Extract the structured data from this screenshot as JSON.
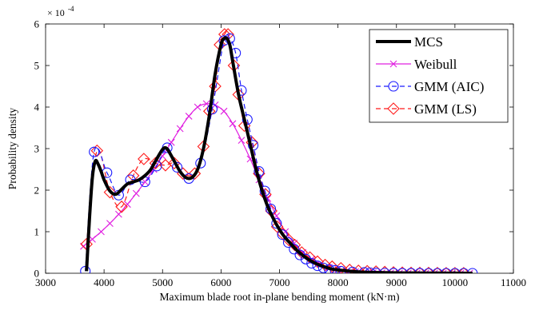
{
  "chart_data": {
    "type": "line",
    "xlabel": "Maximum blade root in-plane bending moment (kN·m)",
    "ylabel": "Probability density",
    "y_exponent_label": "× 10",
    "y_exponent_power": "-4",
    "xlim": [
      3000,
      11000
    ],
    "ylim": [
      0,
      6
    ],
    "x_ticks": [
      3000,
      4000,
      5000,
      6000,
      7000,
      8000,
      9000,
      10000,
      11000
    ],
    "y_ticks": [
      0,
      1,
      2,
      3,
      4,
      5,
      6
    ],
    "x_tick_labels": [
      "3000",
      "4000",
      "5000",
      "6000",
      "7000",
      "8000",
      "9000",
      "10000",
      "11000"
    ],
    "y_tick_labels": [
      "0",
      "1",
      "2",
      "3",
      "4",
      "5",
      "6"
    ],
    "grid": false,
    "legend_position": "top-right",
    "series": [
      {
        "name": "MCS",
        "color": "#000000",
        "marker": "none",
        "style": "solid",
        "x": [
          3700,
          3750,
          3800,
          3850,
          3900,
          3950,
          4000,
          4100,
          4200,
          4300,
          4400,
          4500,
          4600,
          4700,
          4800,
          4900,
          5000,
          5050,
          5100,
          5200,
          5300,
          5400,
          5500,
          5600,
          5700,
          5800,
          5900,
          6000,
          6050,
          6100,
          6150,
          6200,
          6300,
          6400,
          6500,
          6600,
          6700,
          6800,
          6900,
          7000,
          7100,
          7200,
          7300,
          7400,
          7500,
          7600,
          7700,
          7800,
          7900,
          8000,
          8200,
          8400,
          8600,
          8800,
          9000,
          9500,
          10000,
          10300
        ],
        "y": [
          0.05,
          1.3,
          2.3,
          2.7,
          2.62,
          2.45,
          2.25,
          1.98,
          1.9,
          2.02,
          2.15,
          2.2,
          2.25,
          2.35,
          2.5,
          2.75,
          2.98,
          3.02,
          2.95,
          2.7,
          2.45,
          2.3,
          2.3,
          2.5,
          3.0,
          3.8,
          4.8,
          5.5,
          5.65,
          5.65,
          5.5,
          5.1,
          4.3,
          3.7,
          3.1,
          2.5,
          2.0,
          1.6,
          1.3,
          1.05,
          0.85,
          0.7,
          0.55,
          0.43,
          0.33,
          0.25,
          0.19,
          0.14,
          0.1,
          0.08,
          0.05,
          0.03,
          0.02,
          0.015,
          0.01,
          0.005,
          0.002,
          0.001
        ]
      },
      {
        "name": "Weibull",
        "color": "#e020e0",
        "marker": "x",
        "style": "solid",
        "x": [
          3650,
          3800,
          3950,
          4100,
          4250,
          4400,
          4550,
          4700,
          4850,
          5000,
          5150,
          5300,
          5450,
          5600,
          5750,
          5900,
          6050,
          6200,
          6350,
          6500,
          6650,
          6800,
          6950,
          7100,
          7250,
          7400,
          7550,
          7700,
          7850,
          8000,
          8150,
          8300,
          8450,
          8600,
          8750,
          8900,
          9050,
          9200,
          9350,
          9500,
          9650,
          9800,
          9950,
          10100,
          10250
        ],
        "y": [
          0.65,
          0.82,
          1.0,
          1.2,
          1.42,
          1.66,
          1.92,
          2.2,
          2.5,
          2.82,
          3.15,
          3.48,
          3.78,
          4.0,
          4.08,
          4.05,
          3.9,
          3.6,
          3.2,
          2.75,
          2.25,
          1.8,
          1.38,
          1.0,
          0.72,
          0.5,
          0.34,
          0.22,
          0.14,
          0.09,
          0.055,
          0.035,
          0.02,
          0.013,
          0.008,
          0.005,
          0.003,
          0.002,
          0.001,
          0.001,
          0.0,
          0.0,
          0.0,
          0.0,
          0.0
        ]
      },
      {
        "name": "GMM (AIC)",
        "color": "#1a1aff",
        "marker": "circle",
        "style": "dashed",
        "x": [
          3680,
          3830,
          4050,
          4250,
          4450,
          4700,
          4900,
          5080,
          5250,
          5450,
          5650,
          5850,
          6050,
          6150,
          6250,
          6350,
          6450,
          6550,
          6650,
          6750,
          6850,
          6950,
          7050,
          7150,
          7250,
          7350,
          7450,
          7550,
          7650,
          7750,
          7850,
          7950,
          8050,
          8250,
          8450,
          8550,
          8650,
          8800,
          8950,
          9100,
          9250,
          9400,
          9550,
          9700,
          9850,
          10000,
          10150,
          10300
        ],
        "y": [
          0.05,
          2.92,
          2.42,
          1.88,
          2.25,
          2.2,
          2.58,
          3.02,
          2.55,
          2.28,
          2.65,
          3.95,
          5.6,
          5.65,
          5.3,
          4.4,
          3.7,
          3.08,
          2.45,
          1.98,
          1.55,
          1.2,
          0.93,
          0.74,
          0.58,
          0.44,
          0.34,
          0.24,
          0.18,
          0.13,
          0.09,
          0.07,
          0.05,
          0.03,
          0.02,
          0.012,
          0.008,
          0.005,
          0.003,
          0.002,
          0.001,
          0.001,
          0.0,
          0.0,
          0.0,
          0.0,
          0.0,
          0.0
        ]
      },
      {
        "name": "GMM (LS)",
        "color": "#ff1a1a",
        "marker": "diamond",
        "style": "dashed",
        "x": [
          3700,
          3880,
          4100,
          4300,
          4500,
          4680,
          4880,
          5050,
          5200,
          5350,
          5550,
          5700,
          5800,
          5900,
          5980,
          6060,
          6120,
          6220,
          6300,
          6400,
          6530,
          6650,
          6760,
          6860,
          6960,
          7060,
          7160,
          7260,
          7380,
          7520,
          7650,
          7780,
          7900,
          8050,
          8200,
          8350,
          8500,
          8650,
          8800,
          8950,
          9100,
          9250,
          9400,
          9550,
          9700,
          9850,
          10000,
          10150
        ],
        "y": [
          0.7,
          2.95,
          1.95,
          1.6,
          2.35,
          2.75,
          2.65,
          2.6,
          2.65,
          2.4,
          2.4,
          3.05,
          3.9,
          4.5,
          5.5,
          5.75,
          5.75,
          5.0,
          4.3,
          3.55,
          3.15,
          2.4,
          1.9,
          1.5,
          1.12,
          0.95,
          0.8,
          0.68,
          0.5,
          0.38,
          0.28,
          0.2,
          0.16,
          0.12,
          0.08,
          0.06,
          0.05,
          0.04,
          0.03,
          0.02,
          0.015,
          0.01,
          0.008,
          0.006,
          0.004,
          0.003,
          0.002,
          0.001
        ]
      }
    ]
  }
}
